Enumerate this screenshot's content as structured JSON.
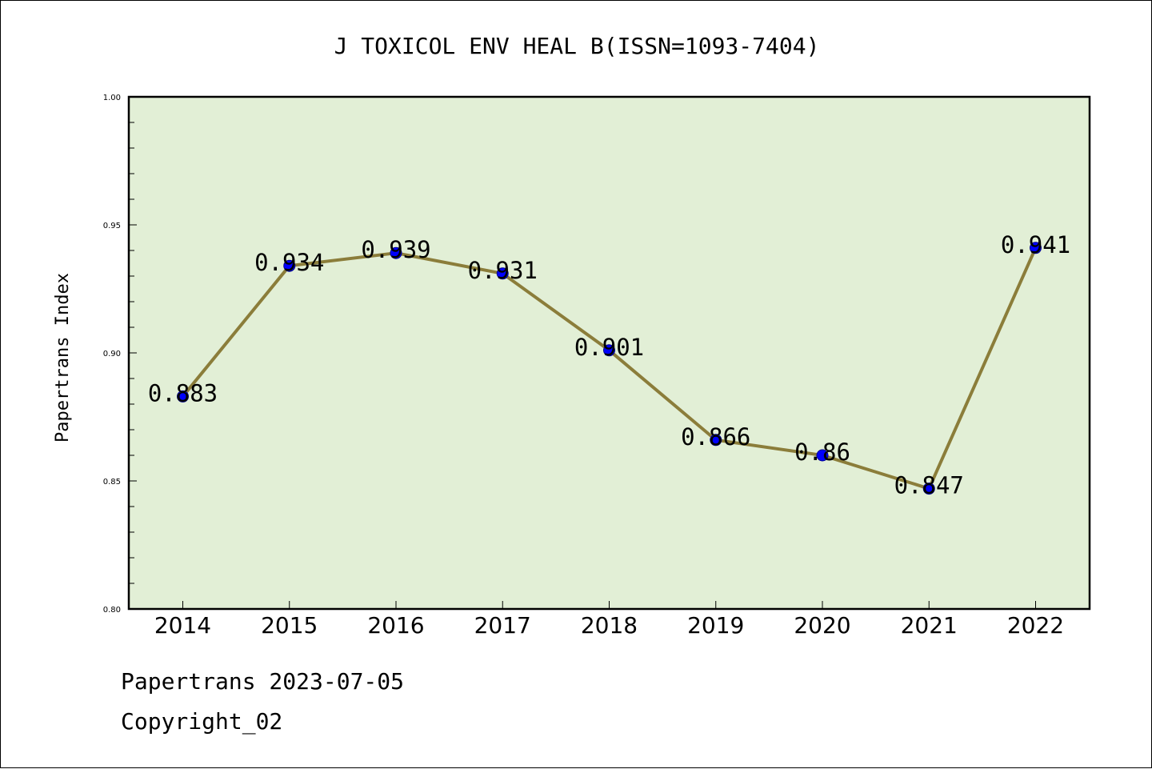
{
  "chart_data": {
    "type": "line",
    "title": "J TOXICOL ENV HEAL B(ISSN=1093-7404)",
    "xlabel": "",
    "ylabel": "Papertrans Index",
    "categories": [
      "2014",
      "2015",
      "2016",
      "2017",
      "2018",
      "2019",
      "2020",
      "2021",
      "2022"
    ],
    "values": [
      0.883,
      0.934,
      0.939,
      0.931,
      0.901,
      0.866,
      0.86,
      0.847,
      0.941
    ],
    "data_labels": [
      "0.883",
      "0.934",
      "0.939",
      "0.931",
      "0.901",
      "0.866",
      "0.86",
      "0.847",
      "0.941"
    ],
    "ylim": [
      0.8,
      1.0
    ],
    "yticks": [
      "0.80",
      "0.85",
      "0.90",
      "0.95",
      "1.00"
    ],
    "grid": false,
    "colors": {
      "plot_background": "#e2efd6",
      "line": "#8b7d3a",
      "marker": "#0000ff"
    }
  },
  "footer": {
    "line1": "Papertrans 2023-07-05",
    "line2": "Copyright_02"
  }
}
